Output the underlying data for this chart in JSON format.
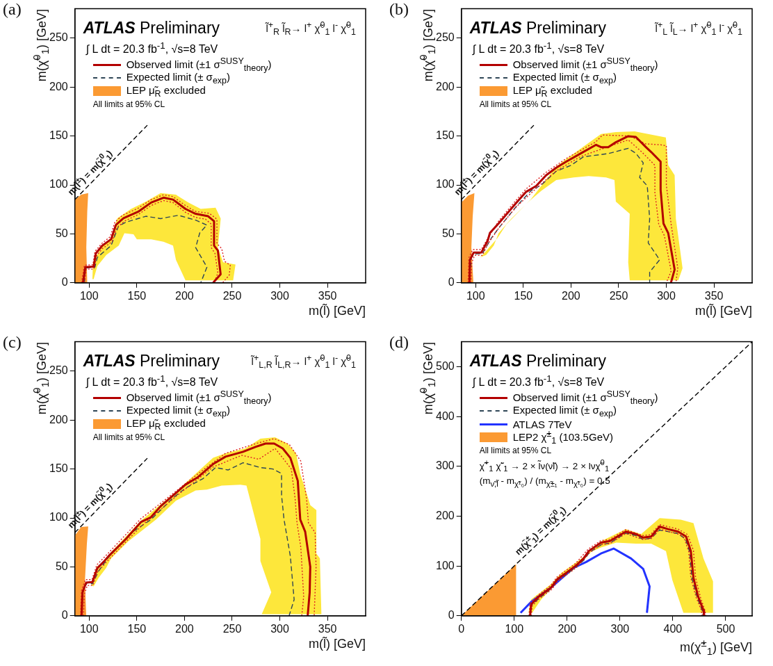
{
  "chart_data": [
    {
      "type": "line",
      "title": "ATLAS Preliminary",
      "subtitle": "∫ L dt = 20.3 fb$^{-1}$, √s=8 TeV",
      "xlabel": "m(l̃) [GeV]",
      "ylabel": "m(χ̃$^{0}$$_{1}$) [GeV]",
      "xlim": [
        85,
        390
      ],
      "ylim": [
        0,
        280
      ],
      "xticks": [
        100,
        150,
        200,
        250,
        300,
        350
      ],
      "yticks": [
        0,
        50,
        100,
        150,
        200,
        250
      ],
      "grid": false,
      "legend": "top left",
      "annotations": [
        "(a)",
        "l̃$^{+}$$_{R}$ l̃$_{R}$→ l$^{+}$ χ̃$^{0}$$_{1}$ l$^{-}$ χ̃$^{0}$$_{1}$",
        "All limits at 95% CL"
      ],
      "series": [
        {
          "name": "Observed limit (±1 σ$^{SUSY}$$_{theory}$)",
          "type": "line",
          "line_style": "solid",
          "color": "#b30000",
          "x": [
            93.5,
            96,
            104.7,
            107,
            113.8,
            123,
            128,
            136,
            152,
            165,
            178,
            188,
            201,
            211.7,
            224.8,
            231,
            231,
            235,
            237.9,
            230
          ],
          "values": [
            0,
            16,
            16.6,
            30,
            38,
            44.5,
            59,
            66,
            73,
            82,
            87,
            85,
            75.5,
            70.5,
            68,
            63,
            38,
            33,
            8.7,
            0
          ]
        },
        {
          "type": "line",
          "line_style": "dotted",
          "color": "#dd2222",
          "x": [
            92,
            95,
            104,
            106,
            113,
            122,
            127,
            135,
            151,
            165,
            178,
            188,
            201,
            211,
            226,
            234,
            234,
            239,
            242,
            248,
            247,
            240
          ],
          "values": [
            0,
            18,
            18.5,
            32,
            40,
            47,
            62,
            69,
            76,
            85,
            90,
            88,
            79,
            73,
            71,
            65,
            40,
            35,
            22,
            18,
            8,
            0
          ]
        },
        {
          "type": "line",
          "line_style": "dotted",
          "color": "#dd2222",
          "x": [
            95,
            97,
            105,
            108,
            114,
            124,
            129,
            137,
            152,
            165,
            178,
            188,
            201,
            211,
            222,
            228,
            228,
            232,
            235,
            231
          ],
          "values": [
            0,
            14,
            14,
            28,
            35,
            42,
            56,
            63,
            70,
            79,
            84,
            82,
            72,
            67,
            65,
            60,
            36,
            30,
            10,
            0
          ]
        },
        {
          "name": "Expected limit (± σ$_{exp}$)",
          "type": "line",
          "line_style": "dashed",
          "color": "#2f4656",
          "x": [
            95,
            96,
            106,
            108.6,
            123,
            130.8,
            138.6,
            159.5,
            175,
            188,
            193.5,
            211.7,
            223.5,
            216,
            211.7,
            223.5,
            217
          ],
          "values": [
            0,
            15,
            16,
            26,
            38,
            58,
            62,
            68,
            65.6,
            68,
            69,
            64,
            59,
            51,
            36,
            16,
            0
          ]
        },
        {
          "type": "area",
          "color": "#fde73b",
          "x": [
            103.4,
            104,
            112.5,
            123,
            129.5,
            144,
            159.5,
            175,
            191,
            204,
            217,
            232.6,
            238,
            235,
            240.5,
            253.5,
            251,
            201,
            191,
            188,
            178,
            165,
            150,
            146.5,
            137,
            131,
            118,
            108.6,
            104.7,
            103.4
          ],
          "values": [
            3.7,
            21,
            36,
            46,
            66,
            75.5,
            83,
            91.6,
            90,
            82,
            75.5,
            76.7,
            65.6,
            36,
            21,
            18.6,
            2.5,
            2.5,
            23.5,
            38,
            42,
            44.5,
            44.5,
            49.5,
            50.7,
            38,
            28.5,
            17,
            3.7,
            3.7
          ]
        },
        {
          "name": "LEP μ̃$_{R}$ excluded",
          "type": "area",
          "color": "#fb9a33",
          "x": [
            85,
            85,
            91.6,
            99,
            98,
            97,
            98,
            85
          ],
          "values": [
            0,
            85,
            90,
            91.6,
            73,
            36,
            0,
            0
          ]
        },
        {
          "name": "m(l̃$^{±}$) = m(χ̃$^{0}$$_{1}$)",
          "type": "line",
          "line_style": "dashed",
          "color": "#000000",
          "x": [
            85,
            161
          ],
          "values": [
            85,
            161
          ]
        }
      ]
    },
    {
      "type": "line",
      "title": "ATLAS Preliminary",
      "subtitle": "∫ L dt = 20.3 fb$^{-1}$, √s=8 TeV",
      "xlabel": "m(l̃) [GeV]",
      "ylabel": "m(χ̃$^{0}$$_{1}$) [GeV]",
      "xlim": [
        85,
        390
      ],
      "ylim": [
        0,
        280
      ],
      "xticks": [
        100,
        150,
        200,
        250,
        300,
        350
      ],
      "yticks": [
        0,
        50,
        100,
        150,
        200,
        250
      ],
      "grid": false,
      "legend": "top left",
      "annotations": [
        "(b)",
        "l̃$^{+}$$_{L}$ l̃$_{L}$→ l$^{+}$ χ̃$^{0}$$_{1}$ l$^{-}$ χ̃$^{0}$$_{1}$",
        "All limits at 95% CL"
      ],
      "series": [
        {
          "name": "Observed limit (±1 σ$^{SUSY}$$_{theory}$)",
          "type": "line",
          "line_style": "solid",
          "color": "#b30000",
          "x": [
            93.5,
            94,
            98,
            106,
            112.6,
            115,
            124,
            142.6,
            153,
            163.5,
            174,
            184.5,
            195,
            210.6,
            226.3,
            231.5,
            239,
            247,
            260,
            268,
            278.6,
            284,
            294,
            294,
            297,
            302,
            308.7,
            304.8
          ],
          "values": [
            0,
            23.5,
            31,
            31,
            43,
            51,
            60.6,
            81.7,
            93,
            99,
            110,
            117.6,
            123.8,
            132.4,
            141,
            138.6,
            138.6,
            143.6,
            149.8,
            149,
            138.6,
            133.7,
            123.8,
            95,
            60.6,
            50.7,
            13.6,
            0
          ]
        },
        {
          "type": "line",
          "line_style": "dotted",
          "color": "#dd2222",
          "x": [
            92,
            93,
            97,
            106,
            113,
            124,
            142,
            153,
            174,
            195,
            226,
            233,
            262,
            278,
            294,
            300,
            300,
            305,
            312,
            310
          ],
          "values": [
            0,
            26,
            34,
            34,
            46,
            63,
            84,
            96,
            113,
            127,
            144,
            151,
            150,
            142,
            141,
            140,
            100,
            60,
            15,
            0
          ]
        },
        {
          "type": "line",
          "line_style": "dotted",
          "color": "#dd2222",
          "x": [
            95,
            96,
            99,
            107,
            113,
            125,
            143,
            163,
            184,
            210,
            230,
            260,
            275,
            288,
            288,
            292,
            298,
            305,
            300
          ],
          "values": [
            0,
            21,
            28,
            28,
            40,
            57,
            78,
            96,
            114,
            129,
            136,
            146,
            133,
            120,
            92,
            60,
            48,
            12,
            0
          ]
        },
        {
          "name": "Expected limit (± σ$_{exp}$)",
          "type": "line",
          "line_style": "dashed",
          "color": "#2f4656",
          "x": [
            93,
            95.5,
            100.8,
            107,
            116.5,
            124,
            142.6,
            158,
            168.8,
            184.5,
            200,
            213,
            239,
            260,
            268,
            275.8,
            272,
            280,
            282.5,
            281,
            293,
            282.5,
            282.5
          ],
          "values": [
            0,
            26,
            29.7,
            29.7,
            45.8,
            55.7,
            78,
            94,
            100,
            114,
            120,
            128.7,
            132,
            137.4,
            132.4,
            122.5,
            107.7,
            99,
            65.6,
            40.8,
            23.5,
            11,
            0
          ]
        },
        {
          "type": "area",
          "color": "#fde73b",
          "x": [
            106,
            123,
            132,
            158,
            184.5,
            200,
            231.5,
            247,
            266.8,
            299.5,
            302,
            308.7,
            310,
            317,
            312.6,
            261.6,
            260,
            261.6,
            247,
            245.6,
            236.8,
            218.5,
            202.8,
            184.5,
            168.8,
            155.7,
            137.4,
            124,
            119,
            111,
            104.7,
            106
          ],
          "values": [
            27,
            45.8,
            59.4,
            85.4,
            118.8,
            130,
            152,
            154,
            154.7,
            148.5,
            120,
            110,
            65.6,
            14.9,
            2.5,
            2.5,
            21,
            70.5,
            83,
            105,
            107.7,
            109,
            107.7,
            105,
            94,
            83,
            65.6,
            50.7,
            38,
            28.5,
            26,
            27
          ]
        },
        {
          "name": "LEP μ̃$_{R}$ excluded",
          "type": "area",
          "color": "#fb9a33",
          "x": [
            85,
            85,
            92,
            98.7,
            96.9,
            95.5,
            97.6,
            85
          ],
          "values": [
            0,
            82,
            89,
            91.6,
            68,
            36,
            0,
            0
          ]
        },
        {
          "name": "m(l̃$^{±}$) = m(χ̃$^{0}$$_{1}$)",
          "type": "line",
          "line_style": "dashed",
          "color": "#000000",
          "x": [
            85,
            161
          ],
          "values": [
            85,
            161
          ]
        }
      ]
    },
    {
      "type": "line",
      "title": "ATLAS Preliminary",
      "subtitle": "∫ L dt = 20.3 fb$^{-1}$, √s=8 TeV",
      "xlabel": "m(l̃) [GeV]",
      "ylabel": "m(χ̃$^{0}$$_{1}$) [GeV]",
      "xlim": [
        85,
        390
      ],
      "ylim": [
        0,
        280
      ],
      "xticks": [
        100,
        150,
        200,
        250,
        300,
        350
      ],
      "yticks": [
        0,
        50,
        100,
        150,
        200,
        250
      ],
      "grid": false,
      "legend": "top left",
      "annotations": [
        "(c)",
        "l̃$^{+}$$_{L,R}$ l̃$_{L,R}$→ l$^{+}$ χ̃$^{0}$$_{1}$ l$^{-}$ χ̃$^{0}$$_{1}$",
        "All limits at 95% CL"
      ],
      "series": [
        {
          "name": "Observed limit (±1 σ$^{SUSY}$$_{theory}$)",
          "type": "line",
          "line_style": "solid",
          "color": "#b30000",
          "x": [
            92,
            93,
            96.9,
            103.4,
            108.6,
            115,
            120.4,
            138.6,
            154.3,
            164.8,
            175,
            191,
            201,
            214,
            230,
            243,
            261.4,
            274.4,
            285,
            294,
            303,
            311,
            318.8,
            321.4,
            326.6,
            331.9,
            331.3,
            329.2
          ],
          "values": [
            0,
            24,
            34,
            34.4,
            48.8,
            55,
            61,
            78.5,
            95.8,
            100.7,
            112,
            125.5,
            134,
            141.6,
            155,
            162.6,
            167.6,
            172.5,
            176,
            176,
            171,
            161.4,
            137.9,
            98.3,
            85.9,
            50,
            24,
            0
          ]
        },
        {
          "type": "line",
          "line_style": "dotted",
          "color": "#dd2222",
          "x": [
            91,
            92,
            96,
            103,
            108,
            120,
            154,
            175,
            214,
            243,
            275,
            294,
            310,
            322,
            328,
            330,
            337,
            338,
            336
          ],
          "values": [
            0,
            26,
            37,
            37,
            52,
            64,
            99,
            115,
            145,
            166,
            176,
            181,
            175,
            158,
            120,
            95,
            85,
            50,
            0
          ]
        },
        {
          "type": "line",
          "line_style": "dotted",
          "color": "#dd2222",
          "x": [
            94,
            95,
            98,
            104,
            109,
            121,
            155,
            191,
            230,
            260,
            278,
            295,
            300,
            312,
            316,
            318,
            322,
            325,
            323
          ],
          "values": [
            0,
            22,
            31,
            31,
            45,
            58,
            92,
            122,
            152,
            164,
            160,
            171,
            165,
            150,
            120,
            95,
            70,
            20,
            0
          ]
        },
        {
          "name": "Expected limit (± σ$_{exp}$)",
          "type": "line",
          "line_style": "dashed",
          "color": "#2f4656",
          "x": [
            92,
            93,
            98,
            103.4,
            110,
            120.4,
            143.9,
            164.8,
            188,
            201,
            219.6,
            232.6,
            245.7,
            261.4,
            279.6,
            292.7,
            301.8,
            301.8,
            304.4,
            311,
            315,
            309.7
          ],
          "values": [
            0,
            25,
            34,
            32.7,
            46,
            60,
            84.7,
            98.3,
            120.5,
            130.4,
            140.3,
            151.5,
            149,
            156.4,
            151.5,
            150,
            145.3,
            123,
            98.3,
            61,
            16.6,
            0
          ]
        },
        {
          "type": "area",
          "color": "#fde73b",
          "x": [
            102,
            108.6,
            115,
            123,
            154,
            191,
            230,
            243,
            264,
            279.6,
            295,
            308,
            317,
            321.4,
            328,
            332,
            338.3,
            338.3,
            342,
            343.6,
            281,
            291,
            279.6,
            279.6,
            273,
            265,
            258.7,
            239,
            223.5,
            211.7,
            191,
            170,
            141,
            123,
            117.8,
            110,
            104.7,
            102
          ],
          "values": [
            31.4,
            51,
            52.5,
            65,
            97,
            126.7,
            161.4,
            166,
            171,
            181,
            182.4,
            176,
            166,
            145,
            125.5,
            113,
            108,
            63.6,
            58.7,
            1.7,
            1.7,
            24,
            56,
            78.5,
            103,
            133,
            134,
            133,
            129,
            128,
            117.6,
            98.3,
            76,
            58.7,
            48.8,
            38.9,
            30,
            31.4
          ]
        },
        {
          "name": "LEP μ̃$_{R}$ excluded",
          "type": "area",
          "color": "#fb9a33",
          "x": [
            85,
            85,
            91.6,
            99,
            97.6,
            95.6,
            96.9,
            85
          ],
          "values": [
            0,
            82,
            90.8,
            91.3,
            73.5,
            36.4,
            0,
            0
          ]
        },
        {
          "name": "m(l̃$^{±}$) = m(χ̃$^{0}$$_{1}$)",
          "type": "line",
          "line_style": "dashed",
          "color": "#000000",
          "x": [
            85,
            161
          ],
          "values": [
            85,
            161
          ]
        }
      ]
    },
    {
      "type": "line",
      "title": "ATLAS Preliminary",
      "subtitle": "∫ L dt = 20.3 fb$^{-1}$, √s=8 TeV",
      "xlabel": "m(χ̃$^{±}$$_{1}$) [GeV]",
      "ylabel": "m(χ̃$^{0}$$_{1}$) [GeV]",
      "xlim": [
        0,
        550
      ],
      "ylim": [
        0,
        550
      ],
      "xticks": [
        0,
        100,
        200,
        300,
        400,
        500
      ],
      "yticks": [
        0,
        100,
        200,
        300,
        400,
        500
      ],
      "grid": false,
      "legend": "top left",
      "annotations": [
        "(d)",
        "All limits at 95% CL",
        "χ̃$^{+}$$_{1}$ χ̃$^{-}$$_{1}$ → 2 × l̃ν(ν̃l) → 2 × lνχ̃$^{0}$$_{1}$",
        "(m$_{ν̃,l̃}$ - m$_{χ̃¹₀}$) / (m$_{χ̃±₁}$ - m$_{χ̃¹₀}$) = 0.5"
      ],
      "series": [
        {
          "name": "Observed limit (±1 σ$^{SUSY}$$_{theory}$)",
          "type": "line",
          "line_style": "solid",
          "color": "#b30000",
          "x": [
            130,
            132,
            146,
            170,
            182,
            198,
            217,
            231,
            241,
            264,
            281,
            311,
            330,
            344,
            359,
            375,
            391,
            410,
            425,
            434,
            439,
            448,
            458,
            459
          ],
          "values": [
            0,
            23,
            38,
            57,
            74,
            86,
            101,
            115,
            130,
            147,
            150,
            169,
            164,
            157,
            159,
            179,
            174,
            169,
            159,
            130,
            76,
            38,
            11,
            0
          ]
        },
        {
          "type": "line",
          "line_style": "dotted",
          "color": "#dd2222",
          "x": [
            128,
            130,
            145,
            169,
            181,
            216,
            240,
            264,
            280,
            311,
            344,
            358,
            375,
            410,
            428,
            439,
            443,
            452,
            461,
            462
          ],
          "values": [
            0,
            26,
            41,
            61,
            78,
            105,
            134,
            151,
            153,
            173,
            161,
            163,
            183,
            174,
            163,
            131,
            77,
            38,
            10,
            0
          ]
        },
        {
          "type": "line",
          "line_style": "dotted",
          "color": "#dd2222",
          "x": [
            132,
            134,
            147,
            171,
            183,
            218,
            242,
            265,
            281,
            311,
            344,
            359,
            375,
            410,
            421,
            430,
            434,
            444,
            454,
            455
          ],
          "values": [
            0,
            20,
            34,
            53,
            70,
            97,
            126,
            143,
            145,
            165,
            153,
            155,
            174,
            164,
            157,
            129,
            76,
            37,
            11,
            0
          ]
        },
        {
          "name": "Expected limit (± σ$_{exp}$)",
          "type": "line",
          "line_style": "dashed",
          "color": "#2f4656",
          "x": [
            130,
            133,
            147,
            170,
            182,
            199,
            218,
            232,
            242,
            265,
            281,
            311,
            330,
            344,
            359,
            375,
            391,
            410,
            424,
            432,
            436,
            446,
            456,
            457
          ],
          "values": [
            0,
            22,
            35,
            55,
            72,
            84,
            99,
            112,
            127,
            143,
            146,
            166,
            161,
            153,
            156,
            172,
            169,
            165,
            154,
            128,
            76,
            37,
            10,
            0
          ]
        },
        {
          "name": "ATLAS 7TeV",
          "type": "line",
          "line_style": "solid",
          "color": "#2233ff",
          "x": [
            112,
            132,
            170,
            212,
            236,
            264,
            288,
            321,
            344,
            356,
            351
          ],
          "values": [
            6,
            28,
            57,
            96,
            108,
            125,
            135,
            115,
            94,
            59,
            6
          ]
        },
        {
          "type": "area",
          "color": "#fde73b",
          "x": [
            127,
            132,
            170,
            189,
            231,
            245,
            269,
            311,
            340,
            375,
            415,
            439,
            458,
            476,
            476,
            420,
            399,
            387,
            359,
            330,
            293,
            264,
            245,
            222,
            179,
            151,
            134,
            127
          ],
          "values": [
            6,
            33,
            64,
            86,
            118,
            135,
            152,
            174,
            164,
            196,
            193,
            186,
            115,
            69,
            6,
            6,
            72,
            130,
            145,
            145,
            147,
            137,
            128,
            101,
            64,
            33,
            6,
            6
          ]
        },
        {
          "name": "LEP2 χ̃$^{±}$$_{1}$ (103.5GeV)",
          "type": "area",
          "color": "#fb9a33",
          "x": [
            0,
            103.5,
            103.5,
            0
          ],
          "values": [
            0,
            103.5,
            0,
            0
          ]
        },
        {
          "name": "m(χ̃$^{±}$$_{1}$) = m(χ̃$^{0}$$_{1}$)",
          "type": "line",
          "line_style": "dashed",
          "color": "#000000",
          "x": [
            0,
            550
          ],
          "values": [
            0,
            550
          ]
        }
      ]
    }
  ]
}
